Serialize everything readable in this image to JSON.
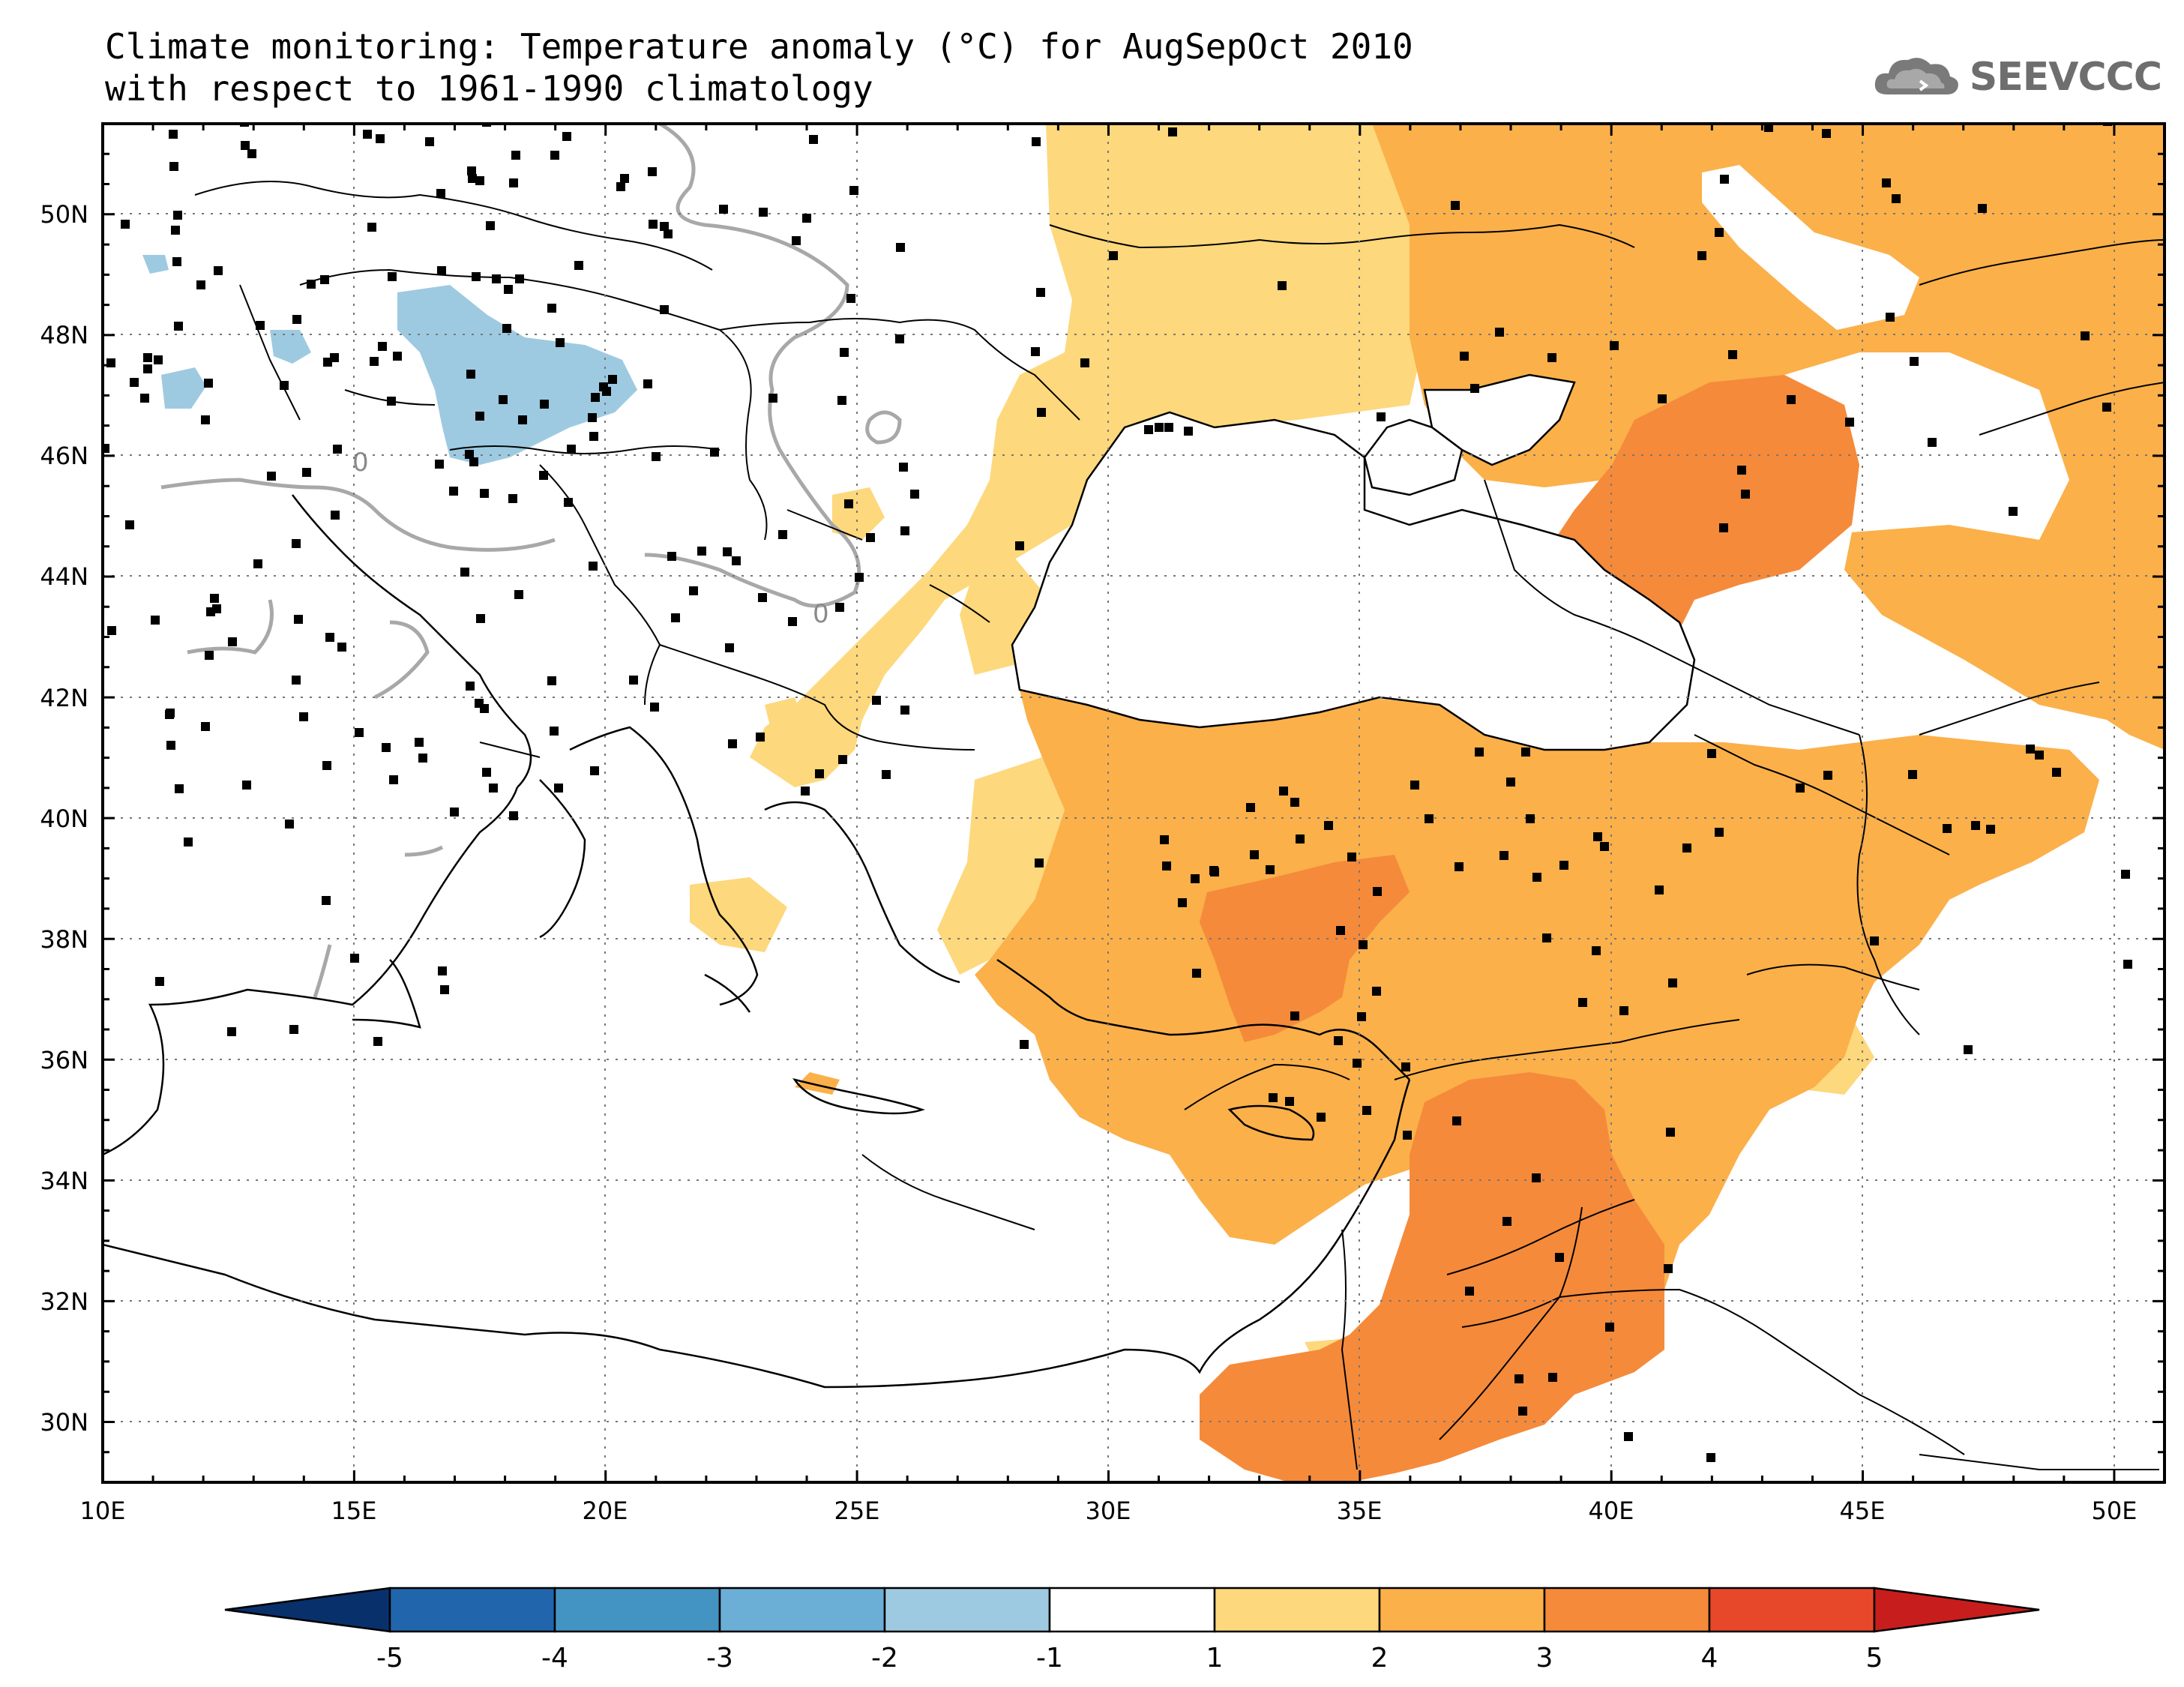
{
  "title": {
    "line1": "Climate monitoring: Temperature anomaly (°C) for AugSepOct 2010",
    "line2": "with respect to 1961-1990 climatology"
  },
  "logo": {
    "text": "SEEVCCC",
    "icon": "cloud-icon"
  },
  "map": {
    "lon_range": [
      10,
      51
    ],
    "lat_range": [
      29,
      51.5
    ],
    "x_ticks": [
      "10E",
      "15E",
      "20E",
      "25E",
      "30E",
      "35E",
      "40E",
      "45E",
      "50E"
    ],
    "y_ticks": [
      "30N",
      "32N",
      "34N",
      "36N",
      "38N",
      "40N",
      "42N",
      "44N",
      "46N",
      "48N",
      "50N"
    ],
    "contour_label": "0"
  },
  "colorbar": {
    "labels": [
      "-5",
      "-4",
      "-3",
      "-2",
      "-1",
      "1",
      "2",
      "3",
      "4",
      "5"
    ],
    "colors": [
      "#08306b",
      "#2166ac",
      "#4393c3",
      "#6baed6",
      "#9ecae1",
      "#ffffff",
      "#fdd87c",
      "#fbb04a",
      "#f58a3b",
      "#e8482a",
      "#c81d1d"
    ]
  },
  "anomaly_colors": {
    "pos_1_2": "#fdd87c",
    "pos_2_3": "#fbb04a",
    "pos_3_4": "#f58a3b",
    "neg_1_2": "#9ecae1"
  }
}
